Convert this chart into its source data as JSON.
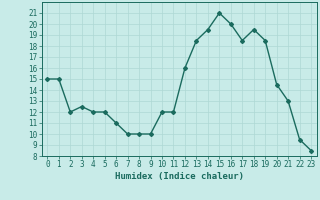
{
  "x": [
    0,
    1,
    2,
    3,
    4,
    5,
    6,
    7,
    8,
    9,
    10,
    11,
    12,
    13,
    14,
    15,
    16,
    17,
    18,
    19,
    20,
    21,
    22,
    23
  ],
  "y": [
    15,
    15,
    12,
    12.5,
    12,
    12,
    11,
    10,
    10,
    10,
    12,
    12,
    16,
    18.5,
    19.5,
    21,
    20,
    18.5,
    19.5,
    18.5,
    14.5,
    13,
    9.5,
    8.5
  ],
  "line_color": "#1a6b5e",
  "marker": "D",
  "marker_size": 2.0,
  "bg_color": "#c8ebe8",
  "grid_color": "#aed8d4",
  "xlabel": "Humidex (Indice chaleur)",
  "xlim": [
    -0.5,
    23.5
  ],
  "ylim": [
    8,
    22
  ],
  "yticks": [
    8,
    9,
    10,
    11,
    12,
    13,
    14,
    15,
    16,
    17,
    18,
    19,
    20,
    21
  ],
  "xticks": [
    0,
    1,
    2,
    3,
    4,
    5,
    6,
    7,
    8,
    9,
    10,
    11,
    12,
    13,
    14,
    15,
    16,
    17,
    18,
    19,
    20,
    21,
    22,
    23
  ],
  "xlabel_fontsize": 6.5,
  "tick_fontsize": 5.5,
  "axis_color": "#1a6b5e",
  "line_width": 1.0
}
